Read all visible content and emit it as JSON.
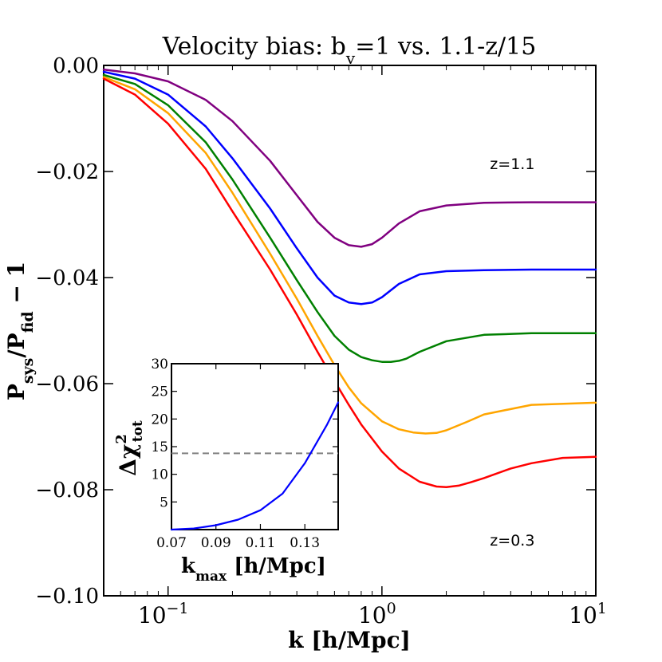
{
  "chart_data": [
    {
      "type": "line",
      "title": "Velocity bias: b_v=1 vs. 1.1-z/15",
      "title_parts": {
        "pre": "Velocity bias: b",
        "sub": "v",
        "post": "=1 vs. 1.1-z/15"
      },
      "xlabel": "k [h/Mpc]",
      "ylabel_parts": {
        "p1": "P",
        "s1": "sys",
        "mid": "/P",
        "s2": "fid",
        "post": " − 1"
      },
      "xscale": "log",
      "xlim": [
        0.05,
        10
      ],
      "ylim": [
        -0.1,
        0.0
      ],
      "xticks": [
        {
          "value": 0.1,
          "base": "10",
          "exp": "−1"
        },
        {
          "value": 1,
          "base": "10",
          "exp": "0"
        },
        {
          "value": 10,
          "base": "10",
          "exp": "1"
        }
      ],
      "yticks": [
        {
          "value": 0.0,
          "label": "0.00"
        },
        {
          "value": -0.02,
          "label": "−0.02"
        },
        {
          "value": -0.04,
          "label": "−0.04"
        },
        {
          "value": -0.06,
          "label": "−0.06"
        },
        {
          "value": -0.08,
          "label": "−0.08"
        },
        {
          "value": -0.1,
          "label": "−0.10"
        }
      ],
      "grid": false,
      "annotations": [
        {
          "text": "z=1.1",
          "x": 3.2,
          "y": -0.0185
        },
        {
          "text": "z=0.3",
          "x": 3.2,
          "y": -0.0895
        }
      ],
      "series": [
        {
          "color": "#800080",
          "x": [
            0.05,
            0.07,
            0.1,
            0.15,
            0.2,
            0.3,
            0.4,
            0.5,
            0.6,
            0.7,
            0.8,
            0.9,
            1.0,
            1.2,
            1.5,
            2,
            3,
            5,
            10
          ],
          "y": [
            -0.0008,
            -0.0015,
            -0.003,
            -0.0065,
            -0.0105,
            -0.018,
            -0.0245,
            -0.0295,
            -0.0325,
            -0.0339,
            -0.0342,
            -0.0337,
            -0.0325,
            -0.0298,
            -0.0275,
            -0.0264,
            -0.0259,
            -0.0258,
            -0.0258
          ]
        },
        {
          "color": "#0000ff",
          "x": [
            0.05,
            0.07,
            0.1,
            0.15,
            0.2,
            0.3,
            0.4,
            0.5,
            0.6,
            0.7,
            0.8,
            0.9,
            1.0,
            1.2,
            1.5,
            2,
            3,
            5,
            10
          ],
          "y": [
            -0.0012,
            -0.0025,
            -0.0055,
            -0.0115,
            -0.0175,
            -0.027,
            -0.0345,
            -0.04,
            -0.0434,
            -0.0447,
            -0.045,
            -0.0447,
            -0.0437,
            -0.0412,
            -0.0394,
            -0.0388,
            -0.0386,
            -0.0385,
            -0.0385
          ]
        },
        {
          "color": "#008000",
          "x": [
            0.05,
            0.07,
            0.1,
            0.15,
            0.2,
            0.3,
            0.4,
            0.5,
            0.6,
            0.7,
            0.8,
            0.9,
            1.0,
            1.1,
            1.2,
            1.3,
            1.5,
            2,
            3,
            5,
            10
          ],
          "y": [
            -0.0018,
            -0.0035,
            -0.0075,
            -0.0145,
            -0.0215,
            -0.0325,
            -0.0405,
            -0.0465,
            -0.051,
            -0.0536,
            -0.055,
            -0.0556,
            -0.0559,
            -0.0559,
            -0.0557,
            -0.0553,
            -0.054,
            -0.052,
            -0.0508,
            -0.0505,
            -0.0505
          ]
        },
        {
          "color": "#ffa500",
          "x": [
            0.05,
            0.07,
            0.1,
            0.15,
            0.2,
            0.3,
            0.4,
            0.5,
            0.6,
            0.7,
            0.8,
            1.0,
            1.2,
            1.4,
            1.6,
            1.8,
            2,
            2.5,
            3,
            5,
            10
          ],
          "y": [
            -0.0022,
            -0.0045,
            -0.009,
            -0.0165,
            -0.024,
            -0.0355,
            -0.044,
            -0.051,
            -0.0565,
            -0.0607,
            -0.0637,
            -0.0671,
            -0.0686,
            -0.0692,
            -0.0694,
            -0.0693,
            -0.0688,
            -0.0672,
            -0.0658,
            -0.064,
            -0.0636
          ]
        },
        {
          "color": "#ff0000",
          "x": [
            0.05,
            0.07,
            0.1,
            0.15,
            0.2,
            0.3,
            0.4,
            0.5,
            0.6,
            0.7,
            0.8,
            1.0,
            1.2,
            1.5,
            1.8,
            2.0,
            2.3,
            2.6,
            3,
            4,
            5,
            7,
            10
          ],
          "y": [
            -0.0025,
            -0.0055,
            -0.011,
            -0.0195,
            -0.0275,
            -0.0385,
            -0.047,
            -0.054,
            -0.0595,
            -0.064,
            -0.0677,
            -0.0728,
            -0.076,
            -0.0785,
            -0.0794,
            -0.0795,
            -0.0792,
            -0.0786,
            -0.0778,
            -0.076,
            -0.075,
            -0.074,
            -0.0738
          ]
        }
      ]
    },
    {
      "type": "line",
      "role": "inset",
      "xlabel_parts": {
        "pre": "k",
        "sub": "max",
        "post": " [h/Mpc]"
      },
      "ylabel_parts": {
        "pre": "Δχ",
        "sup": "2",
        "sub": "tot"
      },
      "xlim": [
        0.07,
        0.145
      ],
      "ylim": [
        0,
        30
      ],
      "xticks": [
        {
          "value": 0.07,
          "label": "0.07"
        },
        {
          "value": 0.09,
          "label": "0.09"
        },
        {
          "value": 0.11,
          "label": "0.11"
        },
        {
          "value": 0.13,
          "label": "0.13"
        }
      ],
      "yticks": [
        {
          "value": 5,
          "label": "5"
        },
        {
          "value": 10,
          "label": "10"
        },
        {
          "value": 15,
          "label": "15"
        },
        {
          "value": 20,
          "label": "20"
        },
        {
          "value": 25,
          "label": "25"
        },
        {
          "value": 30,
          "label": "30"
        }
      ],
      "threshold": {
        "y": 13.8,
        "color": "#808080",
        "style": "dashed"
      },
      "series": [
        {
          "color": "#0000ff",
          "x": [
            0.07,
            0.08,
            0.09,
            0.1,
            0.11,
            0.12,
            0.13,
            0.14,
            0.145
          ],
          "y": [
            0.0,
            0.2,
            0.8,
            1.8,
            3.5,
            6.5,
            12.0,
            19.0,
            23.0
          ]
        }
      ]
    }
  ]
}
